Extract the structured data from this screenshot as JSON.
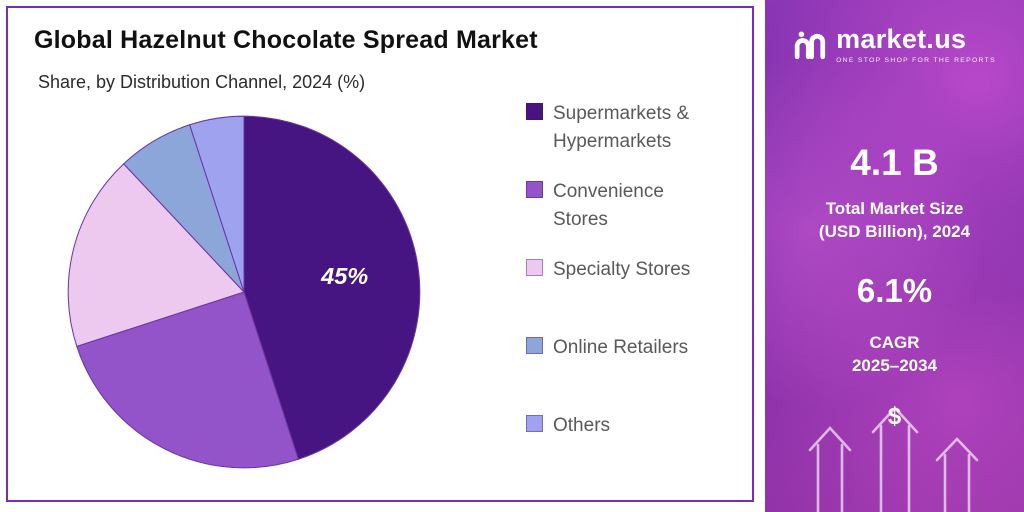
{
  "card": {
    "title": "Global Hazelnut Chocolate Spread Market",
    "subtitle": "Share, by Distribution Channel, 2024 (%)"
  },
  "chart_data": {
    "type": "pie",
    "title": "Global Hazelnut Chocolate Spread Market",
    "subtitle": "Share, by Distribution Channel, 2024 (%)",
    "labels": [
      "Supermarkets & Hypermarkets",
      "Convenience Stores",
      "Specialty Stores",
      "Online Retailers",
      "Others"
    ],
    "values": [
      45,
      25,
      18,
      7,
      5
    ],
    "colors": [
      "#471582",
      "#9254c8",
      "#eec9ef",
      "#8ca6d9",
      "#9fa3ef"
    ],
    "slice_stroke": "#6a35a5",
    "start_angle_deg": -90,
    "direction": "clockwise",
    "legend_position": "right",
    "data_label": {
      "text": "45%",
      "slice_index": 0
    }
  },
  "sidebar": {
    "logo_text": "market.us",
    "logo_tagline": "ONE STOP SHOP FOR THE REPORTS",
    "market_size_value": "4.1 B",
    "market_size_label_line1": "Total Market Size",
    "market_size_label_line2": "(USD Billion), 2024",
    "cagr_value": "6.1%",
    "cagr_label": "CAGR",
    "cagr_period": "2025–2034",
    "dollar_symbol": "$"
  }
}
